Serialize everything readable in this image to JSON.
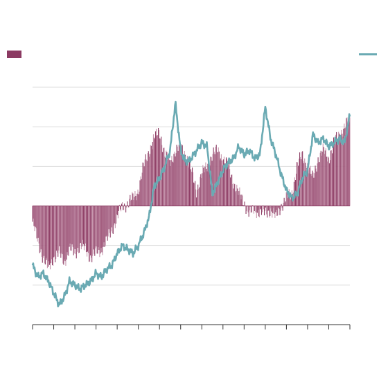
{
  "colors": {
    "bar": "#8b3a62",
    "bar_light": "#c795ad",
    "line": "#6aaab3",
    "grid": "#dddddd",
    "axis": "#333333"
  },
  "legend": {
    "bar_icon": "bar-swatch",
    "line_icon": "line-swatch"
  },
  "chart_data": {
    "type": "bar",
    "grid": true,
    "legend_position": "top",
    "x_ticks": [
      0,
      1,
      2,
      3,
      4,
      5,
      6,
      7,
      8,
      9,
      10,
      11,
      12,
      13,
      14,
      15
    ],
    "xlim": [
      0,
      15
    ],
    "ylim": [
      -3,
      3
    ],
    "yticks": [
      -2,
      -1,
      0,
      1,
      2,
      3
    ],
    "series": [
      {
        "kind": "bar",
        "x": [
          0,
          0.25,
          0.5,
          0.75,
          1,
          1.25,
          1.5,
          1.75,
          2,
          2.25,
          2.5,
          2.75,
          3,
          3.25,
          3.5,
          3.75,
          4,
          4.25,
          4.5,
          4.75,
          5,
          5.25,
          5.5,
          5.75,
          6,
          6.25,
          6.5,
          6.75,
          7,
          7.25,
          7.5,
          7.75,
          8,
          8.25,
          8.5,
          8.75,
          9,
          9.25,
          9.5,
          9.75,
          10,
          10.25,
          10.5,
          10.75,
          11,
          11.25,
          11.5,
          11.75,
          12,
          12.25,
          12.5,
          12.75,
          13,
          13.25,
          13.5,
          13.75,
          14,
          14.25,
          14.5,
          14.75,
          15
        ],
        "values": [
          -0.4,
          -0.9,
          -1.3,
          -1.6,
          -1.3,
          -1.2,
          -1.4,
          -1.1,
          -1.2,
          -1.0,
          -1.1,
          -1.3,
          -1.2,
          -1.1,
          -0.9,
          -0.6,
          -0.3,
          0.0,
          0.05,
          0.2,
          0.4,
          1.0,
          1.4,
          1.7,
          1.9,
          1.3,
          1.1,
          1.4,
          1.5,
          1.3,
          0.9,
          0.4,
          0.8,
          1.0,
          1.3,
          1.4,
          1.2,
          1.0,
          0.6,
          0.3,
          0.1,
          -0.2,
          -0.1,
          -0.15,
          -0.2,
          -0.1,
          -0.3,
          0.0,
          0.2,
          0.3,
          1.0,
          1.3,
          1.0,
          0.7,
          1.2,
          1.4,
          1.2,
          1.6,
          1.8,
          2.0,
          2.2
        ]
      },
      {
        "kind": "line",
        "x": [
          0,
          0.25,
          0.5,
          0.75,
          1,
          1.25,
          1.5,
          1.75,
          2,
          2.25,
          2.5,
          2.75,
          3,
          3.25,
          3.5,
          3.75,
          4,
          4.25,
          4.5,
          4.75,
          5,
          5.25,
          5.5,
          5.75,
          6,
          6.25,
          6.5,
          6.75,
          7,
          7.25,
          7.5,
          7.75,
          8,
          8.25,
          8.5,
          8.75,
          9,
          9.25,
          9.5,
          9.75,
          10,
          10.25,
          10.5,
          10.75,
          11,
          11.25,
          11.5,
          11.75,
          12,
          12.25,
          12.5,
          12.75,
          13,
          13.25,
          13.5,
          13.75,
          14,
          14.25,
          14.5,
          14.75,
          15
        ],
        "values": [
          -1.5,
          -1.8,
          -1.7,
          -1.9,
          -2.2,
          -2.5,
          -2.3,
          -1.9,
          -2.0,
          -2.1,
          -2.0,
          -1.9,
          -1.7,
          -1.8,
          -1.6,
          -1.5,
          -1.2,
          -1.0,
          -1.1,
          -1.2,
          -1.0,
          -0.7,
          -0.3,
          0.5,
          0.7,
          1.0,
          1.4,
          2.6,
          1.4,
          1.1,
          1.2,
          1.4,
          1.6,
          1.5,
          0.3,
          0.6,
          0.9,
          1.1,
          1.2,
          1.5,
          1.3,
          1.4,
          1.2,
          1.3,
          2.5,
          1.7,
          1.3,
          0.8,
          0.4,
          0.2,
          0.3,
          0.7,
          0.9,
          1.8,
          1.6,
          1.7,
          1.5,
          1.6,
          1.7,
          1.6,
          2.3
        ]
      }
    ]
  }
}
